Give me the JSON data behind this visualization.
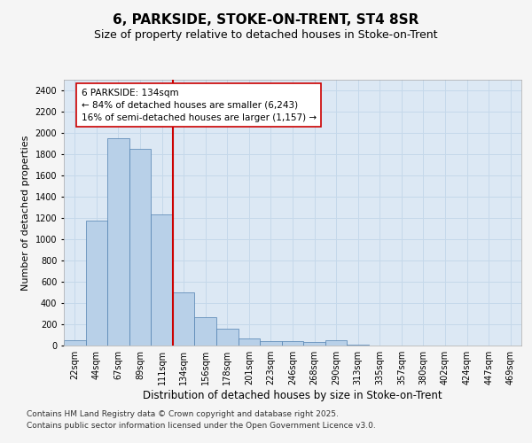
{
  "title1": "6, PARKSIDE, STOKE-ON-TRENT, ST4 8SR",
  "title2": "Size of property relative to detached houses in Stoke-on-Trent",
  "xlabel": "Distribution of detached houses by size in Stoke-on-Trent",
  "ylabel": "Number of detached properties",
  "categories": [
    "22sqm",
    "44sqm",
    "67sqm",
    "89sqm",
    "111sqm",
    "134sqm",
    "156sqm",
    "178sqm",
    "201sqm",
    "223sqm",
    "246sqm",
    "268sqm",
    "290sqm",
    "313sqm",
    "335sqm",
    "357sqm",
    "380sqm",
    "402sqm",
    "424sqm",
    "447sqm",
    "469sqm"
  ],
  "values": [
    50,
    1175,
    1950,
    1850,
    1230,
    500,
    270,
    155,
    70,
    45,
    45,
    35,
    50,
    10,
    2,
    2,
    2,
    1,
    1,
    1,
    1
  ],
  "bar_color": "#b8d0e8",
  "bar_edge_color": "#5080b0",
  "grid_color": "#c5d8ea",
  "background_color": "#dce8f4",
  "fig_background": "#f5f5f5",
  "vline_color": "#cc0000",
  "annotation_text": "6 PARKSIDE: 134sqm\n← 84% of detached houses are smaller (6,243)\n16% of semi-detached houses are larger (1,157) →",
  "annotation_box_color": "#ffffff",
  "annotation_box_edge": "#cc0000",
  "ylim": [
    0,
    2500
  ],
  "yticks": [
    0,
    200,
    400,
    600,
    800,
    1000,
    1200,
    1400,
    1600,
    1800,
    2000,
    2200,
    2400
  ],
  "footer1": "Contains HM Land Registry data © Crown copyright and database right 2025.",
  "footer2": "Contains public sector information licensed under the Open Government Licence v3.0.",
  "title1_fontsize": 11,
  "title2_fontsize": 9,
  "xlabel_fontsize": 8.5,
  "ylabel_fontsize": 8,
  "tick_fontsize": 7,
  "annotation_fontsize": 7.5,
  "footer_fontsize": 6.5
}
